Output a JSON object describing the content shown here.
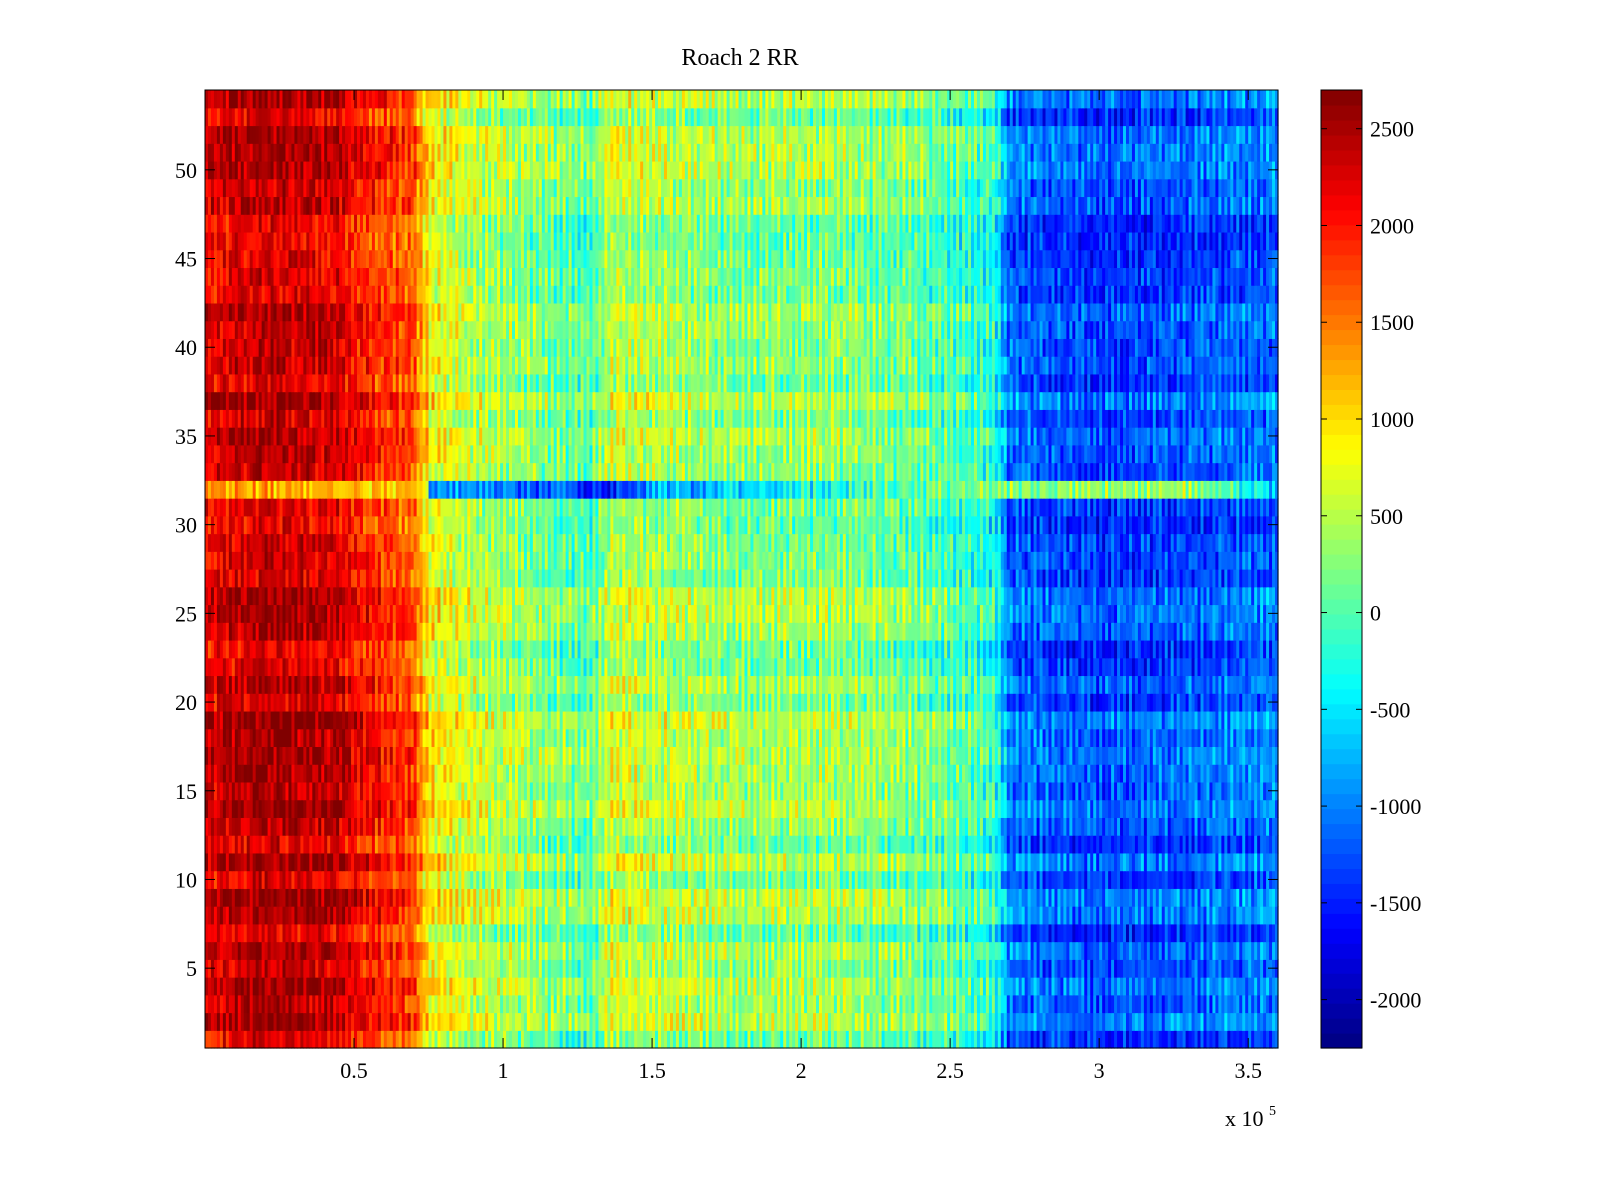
{
  "chart_data": {
    "type": "heatmap",
    "title": "Roach 2 RR",
    "xlabel": "",
    "ylabel": "",
    "x_exponent_label": "x 10",
    "x_exponent_power": "5",
    "x_range": [
      0,
      3.6
    ],
    "y_range": [
      0.5,
      54.5
    ],
    "x_ticks": [
      0.5,
      1,
      1.5,
      2,
      2.5,
      3,
      3.5
    ],
    "x_tick_labels": [
      "0.5",
      "1",
      "1.5",
      "2",
      "2.5",
      "3",
      "3.5"
    ],
    "y_ticks": [
      5,
      10,
      15,
      20,
      25,
      30,
      35,
      40,
      45,
      50
    ],
    "y_tick_labels": [
      "5",
      "10",
      "15",
      "20",
      "25",
      "30",
      "35",
      "40",
      "45",
      "50"
    ],
    "n_rows": 54,
    "colorbar": {
      "colormap": "jet",
      "range": [
        -2250,
        2700
      ],
      "ticks": [
        -2000,
        -1500,
        -1000,
        -500,
        0,
        500,
        1000,
        1500,
        2000,
        2500
      ],
      "tick_labels": [
        "-2000",
        "-1500",
        "-1000",
        "-500",
        "0",
        "500",
        "1000",
        "1500",
        "2000",
        "2500"
      ]
    },
    "column_profile": [
      {
        "x": 0.0,
        "value": 2200
      },
      {
        "x": 0.2,
        "value": 2450
      },
      {
        "x": 0.45,
        "value": 2300
      },
      {
        "x": 0.5,
        "value": 2100
      },
      {
        "x": 0.7,
        "value": 1700
      },
      {
        "x": 0.75,
        "value": 900
      },
      {
        "x": 0.9,
        "value": 550
      },
      {
        "x": 1.1,
        "value": 300
      },
      {
        "x": 1.3,
        "value": 50
      },
      {
        "x": 1.36,
        "value": 600
      },
      {
        "x": 1.5,
        "value": 500
      },
      {
        "x": 1.8,
        "value": 300
      },
      {
        "x": 2.1,
        "value": 350
      },
      {
        "x": 2.4,
        "value": 150
      },
      {
        "x": 2.65,
        "value": -200
      },
      {
        "x": 2.7,
        "value": -1100
      },
      {
        "x": 3.0,
        "value": -1300
      },
      {
        "x": 3.3,
        "value": -1200
      },
      {
        "x": 3.6,
        "value": -1050
      }
    ],
    "row_32_profile": [
      {
        "x": 0.0,
        "value": 1300
      },
      {
        "x": 0.74,
        "value": 1100
      },
      {
        "x": 0.75,
        "value": -700
      },
      {
        "x": 1.35,
        "value": -1500
      },
      {
        "x": 1.5,
        "value": -900
      },
      {
        "x": 2.65,
        "value": 300
      },
      {
        "x": 2.7,
        "value": 300
      },
      {
        "x": 3.3,
        "value": 400
      },
      {
        "x": 3.6,
        "value": -700
      }
    ]
  }
}
